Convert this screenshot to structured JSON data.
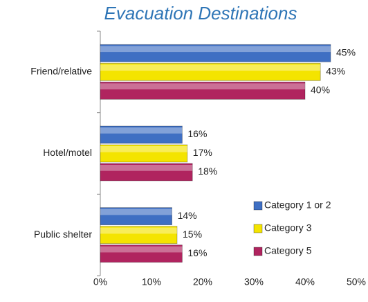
{
  "chart_data": {
    "type": "bar",
    "orientation": "horizontal",
    "title": "Evacuation Destinations",
    "categories": [
      "Friend/relative",
      "Hotel/motel",
      "Public shelter"
    ],
    "series": [
      {
        "name": "Category 1 or 2",
        "color": "#3f6fc3",
        "values": [
          45,
          16,
          14
        ],
        "value_labels": [
          "45%",
          "16%",
          "14%"
        ]
      },
      {
        "name": "Category 3",
        "color": "#f4e400",
        "values": [
          43,
          17,
          15
        ],
        "value_labels": [
          "43%",
          "17%",
          "15%"
        ]
      },
      {
        "name": "Category 5",
        "color": "#b0245f",
        "values": [
          40,
          18,
          16
        ],
        "value_labels": [
          "40%",
          "18%",
          "16%"
        ]
      }
    ],
    "xlim": [
      0,
      50
    ],
    "xticks": [
      {
        "value": 0,
        "label": "0%"
      },
      {
        "value": 10,
        "label": "10%"
      },
      {
        "value": 20,
        "label": "20%"
      },
      {
        "value": 30,
        "label": "30%"
      },
      {
        "value": 40,
        "label": "40%"
      },
      {
        "value": 50,
        "label": "50%"
      }
    ],
    "legend": "lower right",
    "grid": false
  }
}
